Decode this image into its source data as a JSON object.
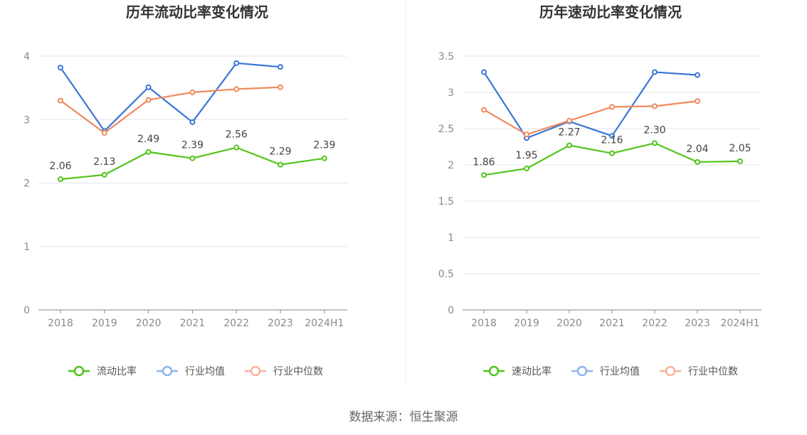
{
  "source_text": "数据来源：恒生聚源",
  "colors": {
    "main": "#52c41a",
    "avg": "#3b75d6",
    "median": "#f08a5d",
    "avg_legend": "#8fb3ee",
    "median_legend": "#f7b39a",
    "grid": "#e3e6ee",
    "axis": "#888888"
  },
  "chart_data": [
    {
      "type": "line",
      "title": "历年流动比率变化情况",
      "categories": [
        "2018",
        "2019",
        "2020",
        "2021",
        "2022",
        "2023",
        "2024H1"
      ],
      "ylim": [
        0,
        4
      ],
      "yticks": [
        "0",
        "1",
        "2",
        "3",
        "4"
      ],
      "ytick_values": [
        0,
        1,
        2,
        3,
        4
      ],
      "series": [
        {
          "name": "流动比率",
          "values": [
            2.06,
            2.13,
            2.49,
            2.39,
            2.56,
            2.29,
            2.39
          ],
          "labels": [
            "2.06",
            "2.13",
            "2.49",
            "2.39",
            "2.56",
            "2.29",
            "2.39"
          ]
        },
        {
          "name": "行业均值",
          "values": [
            3.82,
            2.82,
            3.51,
            2.96,
            3.89,
            3.83,
            null
          ]
        },
        {
          "name": "行业中位数",
          "values": [
            3.3,
            2.79,
            3.31,
            3.43,
            3.48,
            3.51,
            null
          ]
        }
      ]
    },
    {
      "type": "line",
      "title": "历年速动比率变化情况",
      "categories": [
        "2018",
        "2019",
        "2020",
        "2021",
        "2022",
        "2023",
        "2024H1"
      ],
      "ylim": [
        0,
        3.5
      ],
      "yticks": [
        "0",
        "0.5",
        "1",
        "1.5",
        "2",
        "2.5",
        "3",
        "3.5"
      ],
      "ytick_values": [
        0,
        0.5,
        1,
        1.5,
        2,
        2.5,
        3,
        3.5
      ],
      "series": [
        {
          "name": "速动比率",
          "values": [
            1.86,
            1.95,
            2.27,
            2.16,
            2.3,
            2.04,
            2.05
          ],
          "labels": [
            "1.86",
            "1.95",
            "2.27",
            "2.16",
            "2.30",
            "2.04",
            "2.05"
          ]
        },
        {
          "name": "行业均值",
          "values": [
            3.28,
            2.37,
            2.6,
            2.4,
            3.28,
            3.24,
            null
          ]
        },
        {
          "name": "行业中位数",
          "values": [
            2.76,
            2.42,
            2.61,
            2.8,
            2.81,
            2.88,
            null
          ]
        }
      ]
    }
  ]
}
